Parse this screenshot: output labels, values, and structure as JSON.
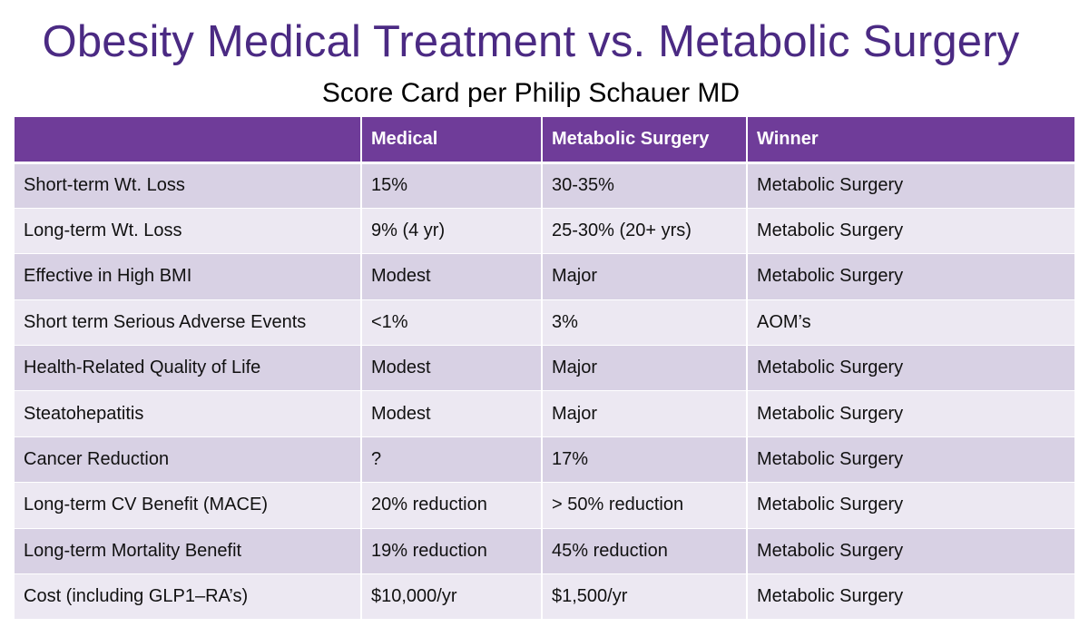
{
  "slide": {
    "title": "Obesity Medical Treatment vs. Metabolic Surgery",
    "subtitle": "Score Card per Philip Schauer MD"
  },
  "table": {
    "headers": [
      "",
      "Medical",
      "Metabolic Surgery",
      "Winner"
    ],
    "rows": [
      [
        "Short-term Wt. Loss",
        "15%",
        "30-35%",
        "Metabolic Surgery"
      ],
      [
        "Long-term Wt. Loss",
        "9%  (4 yr)",
        "25-30% (20+ yrs)",
        "Metabolic Surgery"
      ],
      [
        "Effective in High BMI",
        "Modest",
        "Major",
        "Metabolic Surgery"
      ],
      [
        "Short term Serious Adverse Events",
        "<1%",
        "3%",
        "AOM’s"
      ],
      [
        "Health-Related Quality of Life",
        "Modest",
        "Major",
        "Metabolic Surgery"
      ],
      [
        "Steatohepatitis",
        "Modest",
        "Major",
        "Metabolic Surgery"
      ],
      [
        "Cancer Reduction",
        "?",
        "17%",
        "Metabolic Surgery"
      ],
      [
        "Long-term CV Benefit (MACE)",
        "20% reduction",
        "> 50% reduction",
        "Metabolic Surgery"
      ],
      [
        "Long-term Mortality Benefit",
        "19% reduction",
        "45% reduction",
        "Metabolic Surgery"
      ],
      [
        "Cost (including GLP1–RA’s)",
        "$10,000/yr",
        "$1,500/yr",
        "Metabolic Surgery"
      ]
    ]
  },
  "colors": {
    "title": "#4b2a83",
    "header_bg": "#6f3c99",
    "row_odd": "#d8d1e4",
    "row_even": "#ece8f2"
  }
}
